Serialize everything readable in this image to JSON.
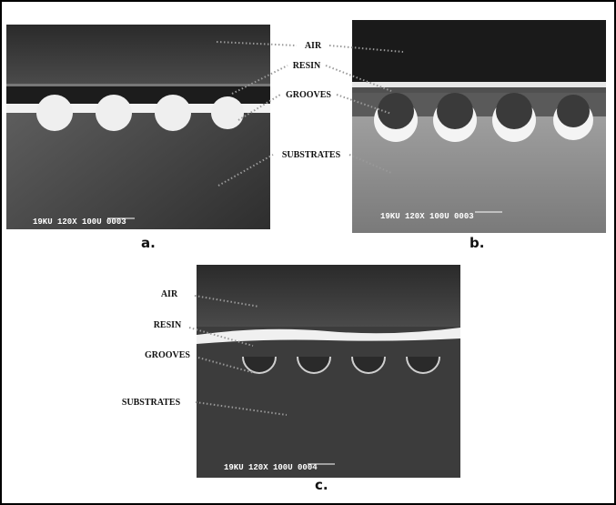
{
  "panels": [
    {
      "label": "a.",
      "info": "19KU  120X  100U 0003"
    },
    {
      "label": "b.",
      "info": "19KU  120X  100U 0003"
    },
    {
      "label": "c.",
      "info": "19KU  120X  100U 0004"
    }
  ],
  "annotations_top": [
    "AIR",
    "RESIN",
    "GROOVES",
    "SUBSTRATES"
  ],
  "annotations_c": [
    "AIR",
    "RESIN",
    "GROOVES",
    "SUBSTRATES"
  ]
}
